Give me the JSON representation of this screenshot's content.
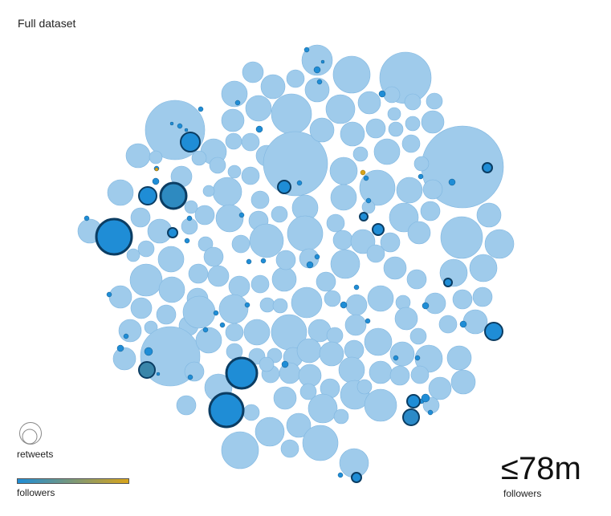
{
  "title": "Full dataset",
  "chart_data": {
    "type": "packed-bubble",
    "circle_size": "retweets",
    "circle_color": "followers",
    "colors": {
      "cluster_fill": "#9fcbeb",
      "cluster_edge": "#7fb6e0",
      "low_followers": "#1f8dd6",
      "high_followers": "#d9a41a",
      "highlight_stroke": "#0b3d63"
    }
  },
  "legend": {
    "size_label": "retweets",
    "color_label": "followers",
    "max_value": "≤78m",
    "max_label": "followers"
  }
}
